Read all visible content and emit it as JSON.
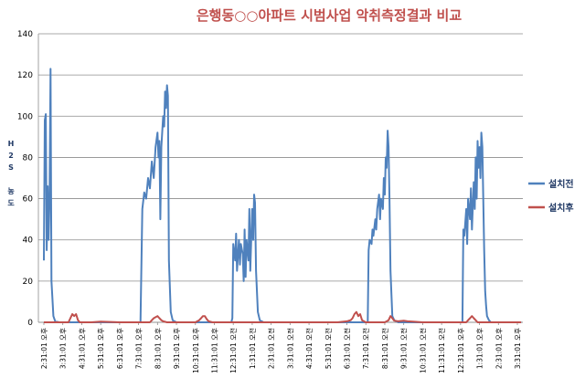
{
  "chart_data": {
    "type": "line",
    "title": "은행동○○아파트 시범사업 악취측정결과 비교",
    "ylabel": "H2S 농도",
    "ylabel_chars": [
      "H",
      "2",
      "S",
      " ",
      "농",
      "도"
    ],
    "ylim": [
      0,
      140
    ],
    "yticks": [
      0,
      20,
      40,
      60,
      80,
      100,
      120,
      140
    ],
    "grid": "horizontal",
    "legend_position": "right",
    "x_tick_labels": [
      "2:31:01 오후",
      "3:31:01 오후",
      "4:31:01 오후",
      "5:31:01 오후",
      "6:31:01 오후",
      "7:31:01 오후",
      "8:31:01 오후",
      "9:31:01 오후",
      "10:31:01 오후",
      "11:31:01 오후",
      "12:31:01 오전",
      "1:31:01 오전",
      "2:31:01 오전",
      "3:31:01 오전",
      "4:31:01 오전",
      "5:31:01 오전",
      "6:31:01 오전",
      "7:31:01 오전",
      "8:31:01 오전",
      "9:31:01 오전",
      "10:31:01 오전",
      "11:31:01 오전",
      "12:31:01 오후",
      "1:31:01 오후",
      "2:31:01 오후",
      "3:31:01 오후"
    ],
    "series": [
      {
        "name": "설치전",
        "color": "#4f81bd",
        "points": [
          [
            0.0,
            30
          ],
          [
            0.05,
            98
          ],
          [
            0.1,
            101
          ],
          [
            0.15,
            35
          ],
          [
            0.2,
            66
          ],
          [
            0.25,
            40
          ],
          [
            0.3,
            60
          ],
          [
            0.35,
            123
          ],
          [
            0.4,
            20
          ],
          [
            0.45,
            12
          ],
          [
            0.5,
            3
          ],
          [
            0.6,
            0.5
          ],
          [
            0.8,
            0
          ],
          [
            5.0,
            0
          ],
          [
            5.1,
            0
          ],
          [
            5.2,
            55
          ],
          [
            5.3,
            63
          ],
          [
            5.4,
            60
          ],
          [
            5.5,
            70
          ],
          [
            5.6,
            65
          ],
          [
            5.7,
            78
          ],
          [
            5.8,
            70
          ],
          [
            5.9,
            85
          ],
          [
            6.0,
            92
          ],
          [
            6.05,
            80
          ],
          [
            6.1,
            88
          ],
          [
            6.15,
            50
          ],
          [
            6.2,
            85
          ],
          [
            6.3,
            100
          ],
          [
            6.35,
            95
          ],
          [
            6.4,
            112
          ],
          [
            6.45,
            104
          ],
          [
            6.5,
            115
          ],
          [
            6.55,
            110
          ],
          [
            6.6,
            30
          ],
          [
            6.7,
            5
          ],
          [
            6.8,
            1
          ],
          [
            7.0,
            0
          ],
          [
            9.9,
            0
          ],
          [
            9.95,
            2
          ],
          [
            10.0,
            38
          ],
          [
            10.1,
            30
          ],
          [
            10.15,
            43
          ],
          [
            10.2,
            25
          ],
          [
            10.3,
            40
          ],
          [
            10.35,
            28
          ],
          [
            10.4,
            38
          ],
          [
            10.5,
            33
          ],
          [
            10.55,
            20
          ],
          [
            10.6,
            45
          ],
          [
            10.65,
            22
          ],
          [
            10.7,
            40
          ],
          [
            10.8,
            30
          ],
          [
            10.85,
            55
          ],
          [
            10.9,
            25
          ],
          [
            11.0,
            55
          ],
          [
            11.05,
            40
          ],
          [
            11.1,
            62
          ],
          [
            11.15,
            58
          ],
          [
            11.2,
            25
          ],
          [
            11.3,
            5
          ],
          [
            11.4,
            1
          ],
          [
            11.6,
            0
          ],
          [
            17.0,
            0
          ],
          [
            17.1,
            0
          ],
          [
            17.15,
            35
          ],
          [
            17.2,
            40
          ],
          [
            17.3,
            38
          ],
          [
            17.35,
            45
          ],
          [
            17.4,
            42
          ],
          [
            17.5,
            50
          ],
          [
            17.55,
            45
          ],
          [
            17.6,
            55
          ],
          [
            17.7,
            62
          ],
          [
            17.75,
            50
          ],
          [
            17.8,
            60
          ],
          [
            17.9,
            55
          ],
          [
            17.95,
            70
          ],
          [
            18.0,
            62
          ],
          [
            18.05,
            80
          ],
          [
            18.1,
            75
          ],
          [
            18.15,
            93
          ],
          [
            18.2,
            85
          ],
          [
            18.25,
            60
          ],
          [
            18.3,
            25
          ],
          [
            18.4,
            3
          ],
          [
            18.5,
            1
          ],
          [
            18.7,
            0
          ],
          [
            22.0,
            0
          ],
          [
            22.1,
            0
          ],
          [
            22.15,
            45
          ],
          [
            22.2,
            42
          ],
          [
            22.3,
            55
          ],
          [
            22.35,
            38
          ],
          [
            22.4,
            60
          ],
          [
            22.5,
            50
          ],
          [
            22.55,
            65
          ],
          [
            22.6,
            45
          ],
          [
            22.7,
            68
          ],
          [
            22.75,
            55
          ],
          [
            22.8,
            80
          ],
          [
            22.85,
            60
          ],
          [
            22.9,
            88
          ],
          [
            22.95,
            75
          ],
          [
            23.0,
            85
          ],
          [
            23.05,
            70
          ],
          [
            23.1,
            92
          ],
          [
            23.15,
            85
          ],
          [
            23.2,
            60
          ],
          [
            23.25,
            35
          ],
          [
            23.3,
            15
          ],
          [
            23.35,
            8
          ],
          [
            23.4,
            3
          ],
          [
            23.5,
            1
          ],
          [
            23.6,
            0
          ],
          [
            25.0,
            0
          ],
          [
            25.2,
            0
          ]
        ]
      },
      {
        "name": "설치후",
        "color": "#c0504d",
        "points": [
          [
            0.0,
            0
          ],
          [
            1.3,
            0
          ],
          [
            1.4,
            2
          ],
          [
            1.5,
            4
          ],
          [
            1.6,
            3
          ],
          [
            1.7,
            4
          ],
          [
            1.8,
            1
          ],
          [
            1.9,
            0
          ],
          [
            2.5,
            0
          ],
          [
            3.0,
            0.3
          ],
          [
            4.0,
            0
          ],
          [
            5.0,
            0
          ],
          [
            5.6,
            0
          ],
          [
            5.7,
            1
          ],
          [
            5.8,
            2
          ],
          [
            5.9,
            2.5
          ],
          [
            6.0,
            3
          ],
          [
            6.1,
            2
          ],
          [
            6.2,
            1
          ],
          [
            6.3,
            0.5
          ],
          [
            6.5,
            0
          ],
          [
            7.5,
            0
          ],
          [
            8.0,
            0
          ],
          [
            8.2,
            1
          ],
          [
            8.3,
            2
          ],
          [
            8.4,
            3
          ],
          [
            8.5,
            3
          ],
          [
            8.6,
            1.5
          ],
          [
            8.7,
            0.5
          ],
          [
            8.9,
            0
          ],
          [
            9.5,
            0
          ],
          [
            12.0,
            0
          ],
          [
            15.5,
            0
          ],
          [
            16.0,
            0.5
          ],
          [
            16.2,
            1
          ],
          [
            16.3,
            2
          ],
          [
            16.4,
            4
          ],
          [
            16.5,
            5
          ],
          [
            16.6,
            3
          ],
          [
            16.7,
            4
          ],
          [
            16.8,
            1
          ],
          [
            16.9,
            0.5
          ],
          [
            17.0,
            0
          ],
          [
            18.0,
            0
          ],
          [
            18.2,
            1
          ],
          [
            18.3,
            3
          ],
          [
            18.4,
            2
          ],
          [
            18.5,
            0.8
          ],
          [
            18.7,
            0.5
          ],
          [
            19.0,
            0.8
          ],
          [
            19.2,
            0.5
          ],
          [
            19.5,
            0.3
          ],
          [
            20.0,
            0
          ],
          [
            22.0,
            0
          ],
          [
            22.3,
            0
          ],
          [
            22.4,
            1
          ],
          [
            22.5,
            2
          ],
          [
            22.6,
            3
          ],
          [
            22.7,
            2
          ],
          [
            22.8,
            1
          ],
          [
            22.9,
            0
          ],
          [
            23.5,
            0
          ],
          [
            25.2,
            0
          ]
        ]
      }
    ]
  }
}
